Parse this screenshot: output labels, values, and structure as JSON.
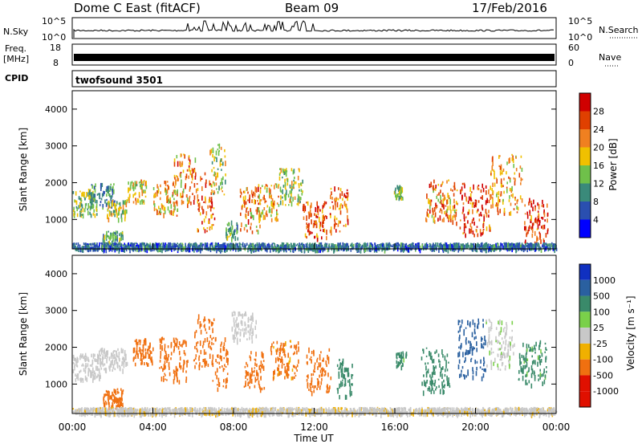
{
  "header": {
    "station": "Dome C East (fitACF)",
    "beam": "Beam 09",
    "date": "17/Feb/2016"
  },
  "noise_panel": {
    "left_label": "N.Sky",
    "left_ticks": [
      "10^5",
      "10^0"
    ],
    "right_label": "N.Search",
    "right_ticks": [
      "10^5",
      "10^0"
    ]
  },
  "freq_panel": {
    "left_label_line1": "Freq.",
    "left_label_line2": "[MHz]",
    "left_ticks": [
      "18",
      "8"
    ],
    "right_label": "Nave",
    "right_ticks": [
      "60",
      "0"
    ]
  },
  "cpid_panel": {
    "label": "CPID",
    "program": "twofsound 3501"
  },
  "x_axis": {
    "label": "Time UT",
    "ticks": [
      "00:00",
      "04:00",
      "08:00",
      "12:00",
      "16:00",
      "20:00",
      "00:00"
    ]
  },
  "colors": {
    "power_scale": [
      "#0000ff",
      "#2a4fb0",
      "#3a8a7a",
      "#6fc04a",
      "#f0c000",
      "#f08020",
      "#e04000",
      "#d00000"
    ],
    "velocity_scale": [
      "#1030c0",
      "#2a60a0",
      "#3a8a6a",
      "#7ad04a",
      "#c8c8c8",
      "#f0b000",
      "#f07010",
      "#e01000"
    ]
  },
  "chart_data": [
    {
      "type": "heatmap",
      "title": "Power",
      "ylabel": "Slant Range [km]",
      "xlabel": "Time UT",
      "xlim": [
        "00:00",
        "24:00"
      ],
      "ylim": [
        200,
        4500
      ],
      "y_ticks": [
        "1000",
        "2000",
        "3000",
        "4000"
      ],
      "colorbar": {
        "label": "Power [dB]",
        "ticks": [
          "28",
          "24",
          "20",
          "16",
          "12",
          "8",
          "4"
        ],
        "range": [
          0,
          32
        ]
      },
      "blobs": [
        {
          "t": 0.5,
          "r": 1500,
          "dt": 1.4,
          "dr": 350,
          "v": 14
        },
        {
          "t": 1.5,
          "r": 1700,
          "dt": 1.2,
          "dr": 300,
          "v": 10
        },
        {
          "t": 2.2,
          "r": 1300,
          "dt": 1.0,
          "dr": 250,
          "v": 16
        },
        {
          "t": 2.0,
          "r": 500,
          "dt": 1.0,
          "dr": 200,
          "v": 12
        },
        {
          "t": 3.2,
          "r": 1800,
          "dt": 0.9,
          "dr": 300,
          "v": 18
        },
        {
          "t": 4.6,
          "r": 1600,
          "dt": 1.2,
          "dr": 500,
          "v": 20
        },
        {
          "t": 5.6,
          "r": 2100,
          "dt": 1.2,
          "dr": 700,
          "v": 22
        },
        {
          "t": 6.6,
          "r": 1500,
          "dt": 0.9,
          "dr": 800,
          "v": 24
        },
        {
          "t": 7.2,
          "r": 2400,
          "dt": 0.8,
          "dr": 700,
          "v": 16
        },
        {
          "t": 7.9,
          "r": 750,
          "dt": 0.6,
          "dr": 250,
          "v": 12
        },
        {
          "t": 8.8,
          "r": 1300,
          "dt": 1.0,
          "dr": 600,
          "v": 22
        },
        {
          "t": 9.7,
          "r": 1500,
          "dt": 1.0,
          "dr": 500,
          "v": 20
        },
        {
          "t": 10.8,
          "r": 1900,
          "dt": 1.2,
          "dr": 500,
          "v": 16
        },
        {
          "t": 12.0,
          "r": 1000,
          "dt": 1.2,
          "dr": 500,
          "v": 26
        },
        {
          "t": 13.2,
          "r": 1300,
          "dt": 0.9,
          "dr": 600,
          "v": 24
        },
        {
          "t": 16.2,
          "r": 1800,
          "dt": 0.5,
          "dr": 200,
          "v": 14
        },
        {
          "t": 18.3,
          "r": 1500,
          "dt": 1.6,
          "dr": 600,
          "v": 22
        },
        {
          "t": 20.0,
          "r": 1300,
          "dt": 1.6,
          "dr": 700,
          "v": 26
        },
        {
          "t": 21.5,
          "r": 2000,
          "dt": 1.6,
          "dr": 800,
          "v": 20
        },
        {
          "t": 23.0,
          "r": 1000,
          "dt": 1.2,
          "dr": 600,
          "v": 28
        },
        {
          "t": 12.0,
          "r": 300,
          "dt": 24.0,
          "dr": 80,
          "v": 8
        }
      ]
    },
    {
      "type": "heatmap",
      "title": "Velocity",
      "ylabel": "Slant Range [km]",
      "xlabel": "Time UT",
      "xlim": [
        "00:00",
        "24:00"
      ],
      "ylim": [
        200,
        4500
      ],
      "y_ticks": [
        "1000",
        "2000",
        "3000",
        "4000"
      ],
      "colorbar": {
        "label": "Velocity [m s⁻¹]",
        "ticks": [
          "1000",
          "500",
          "100",
          "25",
          "-25",
          "-100",
          "-500",
          "-1000"
        ]
      },
      "blobs": [
        {
          "t": 0.6,
          "r": 1500,
          "dt": 1.6,
          "dr": 350,
          "v": -10
        },
        {
          "t": 2.0,
          "r": 1700,
          "dt": 1.4,
          "dr": 300,
          "v": 10
        },
        {
          "t": 2.0,
          "r": 650,
          "dt": 1.0,
          "dr": 250,
          "v": -300
        },
        {
          "t": 3.5,
          "r": 1900,
          "dt": 1.0,
          "dr": 350,
          "v": -200
        },
        {
          "t": 5.0,
          "r": 1700,
          "dt": 1.4,
          "dr": 600,
          "v": -250
        },
        {
          "t": 6.5,
          "r": 2200,
          "dt": 1.0,
          "dr": 700,
          "v": -400
        },
        {
          "t": 7.3,
          "r": 1600,
          "dt": 0.8,
          "dr": 700,
          "v": -150
        },
        {
          "t": 8.5,
          "r": 2600,
          "dt": 1.2,
          "dr": 400,
          "v": 10
        },
        {
          "t": 9.0,
          "r": 1400,
          "dt": 1.0,
          "dr": 500,
          "v": -300
        },
        {
          "t": 10.5,
          "r": 1700,
          "dt": 1.4,
          "dr": 500,
          "v": -120
        },
        {
          "t": 12.2,
          "r": 1400,
          "dt": 1.2,
          "dr": 600,
          "v": -400
        },
        {
          "t": 13.5,
          "r": 1200,
          "dt": 0.8,
          "dr": 500,
          "v": 150
        },
        {
          "t": 16.3,
          "r": 1700,
          "dt": 0.5,
          "dr": 200,
          "v": 120
        },
        {
          "t": 18.0,
          "r": 1400,
          "dt": 1.4,
          "dr": 600,
          "v": 200
        },
        {
          "t": 19.8,
          "r": 2000,
          "dt": 1.4,
          "dr": 800,
          "v": 800
        },
        {
          "t": 21.2,
          "r": 2100,
          "dt": 1.4,
          "dr": 700,
          "v": 20
        },
        {
          "t": 22.8,
          "r": 1600,
          "dt": 1.4,
          "dr": 600,
          "v": 120
        },
        {
          "t": 12.0,
          "r": 300,
          "dt": 24.0,
          "dr": 80,
          "v": -20
        }
      ]
    }
  ]
}
